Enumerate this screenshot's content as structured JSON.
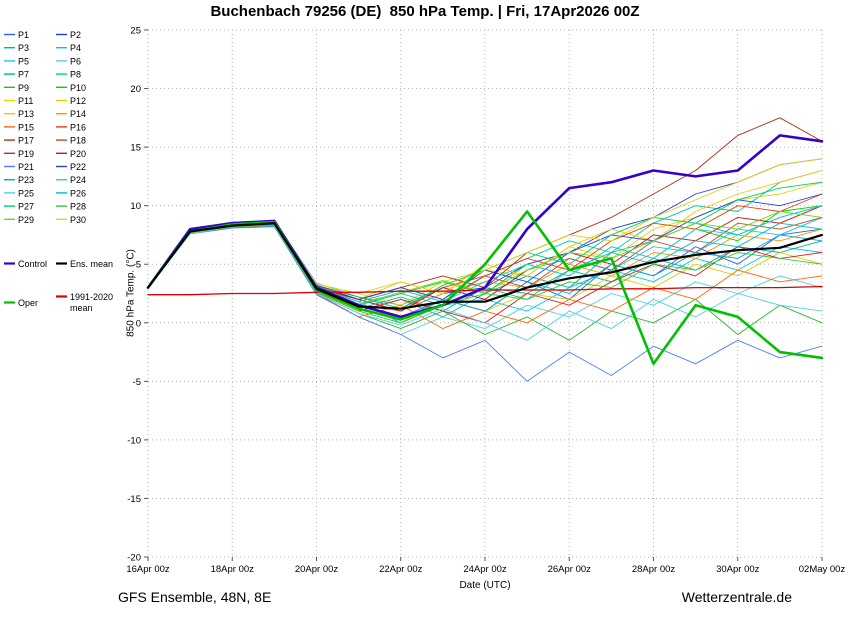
{
  "footer": {
    "left": "GFS Ensemble, 48N, 8E",
    "right": "Wetterzentrale.de"
  },
  "chart_data": {
    "type": "line",
    "title": "Buchenbach 79256 (DE)  850 hPa Temp. | Fri, 17Apr2026 00Z",
    "xlabel": "Date (UTC)",
    "ylabel": "850 hPa Temp. (°C)",
    "ylim": [
      -20,
      25
    ],
    "ytick_step": 5,
    "grid": true,
    "legend_position": "top-left",
    "x_unit": "days since 16Apr 00z",
    "x": [
      0,
      1,
      2,
      3,
      4,
      5,
      6,
      7,
      8,
      9,
      10,
      11,
      12,
      13,
      14,
      15,
      16
    ],
    "xtick_days": [
      0,
      2,
      4,
      6,
      8,
      10,
      12,
      14,
      16
    ],
    "xtick_labels": [
      "16Apr 00z",
      "18Apr 00z",
      "20Apr 00z",
      "22Apr 00z",
      "24Apr 00z",
      "26Apr 00z",
      "28Apr 00z",
      "30Apr 00z",
      "02May 00z"
    ],
    "series": [
      {
        "name": "P1",
        "role": "member",
        "color": "#2e5cff",
        "values": [
          3,
          7.8,
          8.3,
          8.5,
          3,
          1.5,
          0.5,
          2,
          1,
          3.5,
          2,
          5,
          4,
          6.5,
          5,
          7.5,
          8
        ]
      },
      {
        "name": "P2",
        "role": "member",
        "color": "#1f3fd4",
        "values": [
          3,
          7.9,
          8.4,
          8.6,
          3.2,
          2,
          1,
          2.5,
          3,
          5,
          6,
          8,
          9,
          11,
          12,
          13.5,
          14
        ]
      },
      {
        "name": "P3",
        "role": "member",
        "color": "#00b2b2",
        "values": [
          3,
          7.7,
          8.2,
          8.4,
          2.6,
          1,
          2,
          0.5,
          2.5,
          4,
          3,
          6,
          7,
          8.5,
          7.5,
          9,
          10
        ]
      },
      {
        "name": "P4",
        "role": "member",
        "color": "#00c8d2",
        "values": [
          3,
          7.8,
          8.5,
          8.3,
          2.9,
          1.8,
          0,
          1.5,
          2,
          1,
          3,
          4.5,
          3.5,
          5.5,
          4.5,
          6.5,
          6
        ]
      },
      {
        "name": "P5",
        "role": "member",
        "color": "#19c3e6",
        "values": [
          3,
          8,
          8.6,
          8.7,
          3.4,
          2.2,
          1.5,
          3,
          2,
          4.5,
          5.5,
          4.5,
          6.5,
          6,
          8,
          7.5,
          9
        ]
      },
      {
        "name": "P6",
        "role": "member",
        "color": "#4fd0e9",
        "values": [
          3,
          7.6,
          8.1,
          8.2,
          2.4,
          0.5,
          -1,
          0.5,
          -0.5,
          1.5,
          0.5,
          2.5,
          1.5,
          3.5,
          2.5,
          4,
          3
        ]
      },
      {
        "name": "P7",
        "role": "member",
        "color": "#00b28c",
        "values": [
          3,
          7.8,
          8.3,
          8.5,
          3,
          1.2,
          2.2,
          1,
          3,
          2.5,
          4.5,
          3.5,
          5.5,
          4.5,
          6.5,
          6,
          7
        ]
      },
      {
        "name": "P8",
        "role": "member",
        "color": "#00cc99",
        "values": [
          3,
          7.9,
          8.4,
          8.6,
          3.1,
          2,
          3,
          2,
          4,
          5.5,
          7,
          6,
          8.5,
          10,
          9.5,
          12,
          13
        ]
      },
      {
        "name": "P9",
        "role": "member",
        "color": "#2eb82e",
        "values": [
          3,
          7.7,
          8.2,
          8.3,
          2.5,
          0.8,
          -0.5,
          1,
          -1,
          0.5,
          -1.5,
          1,
          0,
          2,
          -1,
          1.5,
          0
        ]
      },
      {
        "name": "P10",
        "role": "member",
        "color": "#00d400",
        "values": [
          3,
          7.8,
          8.3,
          8.4,
          2.8,
          1.5,
          2.5,
          3.5,
          2.5,
          5,
          4,
          6.5,
          5.5,
          8,
          7,
          9.5,
          10
        ]
      },
      {
        "name": "P11",
        "role": "member",
        "color": "#d9d900",
        "values": [
          3,
          7.9,
          8.5,
          8.6,
          3.3,
          2.5,
          1.5,
          3.5,
          4.5,
          4,
          6.5,
          5.5,
          8,
          9,
          10.5,
          11,
          12
        ]
      },
      {
        "name": "P12",
        "role": "member",
        "color": "#e6c800",
        "values": [
          3,
          7.7,
          8.2,
          8.4,
          2.7,
          1,
          0,
          2,
          1,
          2.5,
          2,
          4,
          3,
          5,
          4,
          6,
          5
        ]
      },
      {
        "name": "P13",
        "role": "member",
        "color": "#ffbf00",
        "values": [
          3,
          7.8,
          8.4,
          8.5,
          3,
          2,
          3.5,
          2.5,
          5,
          4,
          6.5,
          8,
          7,
          9.5,
          11,
          12,
          13
        ]
      },
      {
        "name": "P14",
        "role": "member",
        "color": "#ff9500",
        "values": [
          3,
          7.8,
          8.3,
          8.5,
          2.9,
          1.5,
          1,
          2.5,
          3.5,
          3,
          5,
          4,
          6,
          5.5,
          7.5,
          7,
          8
        ]
      },
      {
        "name": "P15",
        "role": "member",
        "color": "#ff6a00",
        "values": [
          3,
          7.6,
          8.1,
          8.3,
          2.5,
          0.5,
          1.5,
          -0.5,
          1,
          0,
          2,
          1,
          3,
          2,
          4.5,
          3.5,
          4
        ]
      },
      {
        "name": "P16",
        "role": "member",
        "color": "#f03c00",
        "values": [
          3,
          7.9,
          8.4,
          8.6,
          3.2,
          2.2,
          1.2,
          3,
          4,
          5.5,
          4.5,
          7,
          8.5,
          8,
          10,
          9.5,
          11
        ]
      },
      {
        "name": "P17",
        "role": "member",
        "color": "#a83219",
        "values": [
          3,
          7.8,
          8.3,
          8.5,
          3,
          2,
          3,
          4,
          3,
          6,
          7.5,
          9,
          11,
          13,
          16,
          17.5,
          15.5
        ]
      },
      {
        "name": "P18",
        "role": "member",
        "color": "#c04a28",
        "values": [
          3,
          7.9,
          8.4,
          8.5,
          3.1,
          1.8,
          2.8,
          1.8,
          4,
          3,
          5.5,
          4.5,
          7,
          6,
          8.5,
          8,
          9
        ]
      },
      {
        "name": "P19",
        "role": "member",
        "color": "#e02020",
        "values": [
          3,
          7.7,
          8.2,
          8.4,
          2.6,
          1,
          2,
          1,
          0,
          2.5,
          1.5,
          3.5,
          5,
          4,
          6.5,
          5.5,
          6
        ]
      },
      {
        "name": "P20",
        "role": "member",
        "color": "#c81414",
        "values": [
          3,
          7.8,
          8.3,
          8.5,
          3,
          2,
          1,
          3,
          2,
          4.5,
          6,
          5,
          7.5,
          7,
          9,
          8.5,
          10
        ]
      },
      {
        "name": "P21",
        "role": "member",
        "color": "#4f7dff",
        "values": [
          3,
          7.6,
          8.1,
          8.2,
          2.4,
          0.5,
          -1,
          -3,
          -1.5,
          -5,
          -2.5,
          -4.5,
          -2,
          -3.5,
          -1.5,
          -3,
          -2
        ]
      },
      {
        "name": "P22",
        "role": "member",
        "color": "#2744cc",
        "values": [
          3,
          7.9,
          8.4,
          8.6,
          3.2,
          2,
          3,
          2,
          4.5,
          3.5,
          6,
          7.5,
          7,
          9,
          10.5,
          10,
          11
        ]
      },
      {
        "name": "P23",
        "role": "member",
        "color": "#00a8cc",
        "values": [
          3,
          7.8,
          8.3,
          8.4,
          2.8,
          1.2,
          0.2,
          2,
          1,
          3.5,
          2.5,
          5,
          4,
          6,
          5.5,
          7.5,
          7
        ]
      },
      {
        "name": "P24",
        "role": "member",
        "color": "#19cfe0",
        "values": [
          3,
          7.8,
          8.4,
          8.5,
          3,
          1.8,
          2.8,
          1.8,
          3.5,
          5,
          4,
          6.5,
          5.5,
          8,
          7.5,
          9,
          10
        ]
      },
      {
        "name": "P25",
        "role": "member",
        "color": "#53cdf0",
        "values": [
          3,
          7.6,
          8.2,
          8.3,
          2.5,
          0.8,
          -0.2,
          1.2,
          0,
          -1.5,
          1,
          -0.5,
          2,
          0.5,
          2.5,
          1.5,
          1
        ]
      },
      {
        "name": "P26",
        "role": "member",
        "color": "#00bfbf",
        "values": [
          3,
          7.8,
          8.3,
          8.5,
          2.9,
          1.5,
          2.5,
          1.5,
          3,
          2,
          4.5,
          6,
          5,
          7,
          6.5,
          8.5,
          8
        ]
      },
      {
        "name": "P27",
        "role": "member",
        "color": "#00cc66",
        "values": [
          3,
          7.9,
          8.4,
          8.6,
          3.1,
          2.2,
          1.2,
          3.2,
          4.5,
          6,
          5,
          7.5,
          9,
          8.5,
          10.5,
          11.5,
          12
        ]
      },
      {
        "name": "P28",
        "role": "member",
        "color": "#33cc33",
        "values": [
          3,
          7.7,
          8.2,
          8.3,
          2.6,
          1,
          0,
          1.5,
          2.5,
          2,
          3.5,
          3,
          5,
          4.5,
          6,
          5.5,
          5
        ]
      },
      {
        "name": "P29",
        "role": "member",
        "color": "#66d91a",
        "values": [
          3,
          7.8,
          8.3,
          8.5,
          3,
          1.6,
          2.6,
          3.6,
          2.6,
          4.5,
          6,
          5.5,
          7,
          8.5,
          8,
          9.5,
          9
        ]
      },
      {
        "name": "P30",
        "role": "member",
        "color": "#e6d219",
        "values": [
          3,
          7.9,
          8.5,
          8.7,
          3.3,
          2.5,
          3.5,
          2.5,
          4.5,
          6,
          7.5,
          7,
          9,
          10.5,
          12,
          13.5,
          14
        ]
      },
      {
        "name": "Control",
        "role": "control",
        "color": "#3300cc",
        "values": [
          3,
          8,
          8.5,
          8.7,
          3,
          1.5,
          0.5,
          1.5,
          3,
          8,
          11.5,
          12,
          13,
          12.5,
          13,
          16,
          15.5
        ]
      },
      {
        "name": "Ens. mean",
        "role": "mean",
        "color": "#000000",
        "values": [
          3,
          7.8,
          8.3,
          8.5,
          2.9,
          1.4,
          1.2,
          1.8,
          1.8,
          3,
          3.8,
          4.3,
          5.2,
          5.8,
          6.2,
          6.4,
          7.5
        ]
      },
      {
        "name": "Oper",
        "role": "oper",
        "color": "#00c000",
        "values": [
          3,
          7.8,
          8.4,
          8.6,
          2.8,
          1.2,
          0.3,
          1.5,
          5,
          9.5,
          4.5,
          5.5,
          -3.5,
          1.5,
          0.5,
          -2.5,
          -3
        ]
      },
      {
        "name": "1991-2020 mean",
        "role": "climate",
        "color": "#dd0000",
        "values": [
          2.4,
          2.4,
          2.5,
          2.5,
          2.6,
          2.6,
          2.7,
          2.7,
          2.8,
          2.8,
          2.8,
          2.9,
          2.9,
          3,
          3,
          3,
          3.1
        ]
      }
    ]
  }
}
